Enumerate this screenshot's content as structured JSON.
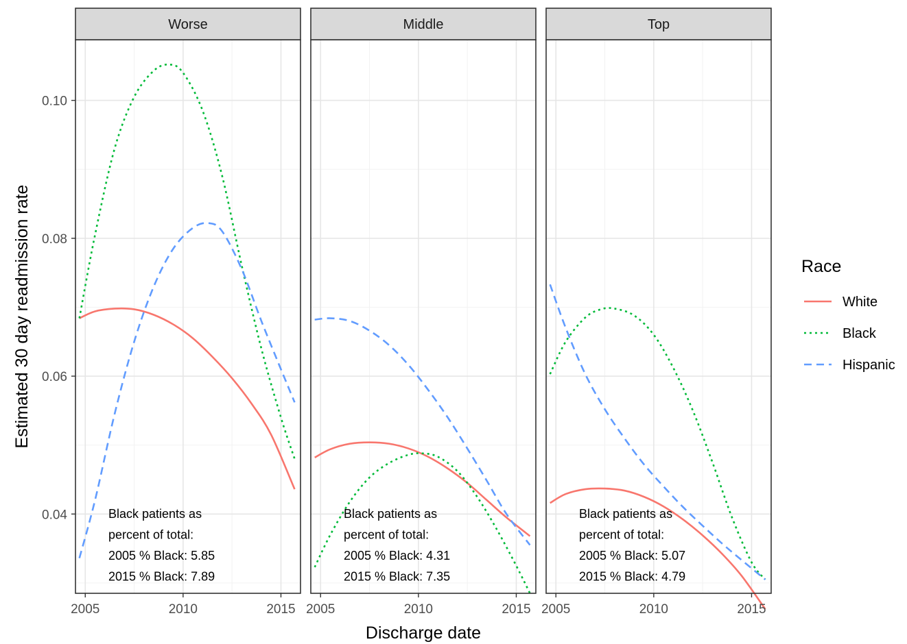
{
  "chart_data": {
    "type": "line",
    "xlabel": "Discharge date",
    "ylabel": "Estimated 30 day readmission rate",
    "xlim": [
      2004.5,
      2016.0
    ],
    "ylim": [
      0.0285,
      0.1088
    ],
    "x_ticks": [
      2005,
      2010,
      2015
    ],
    "x_tick_labels": [
      "2005",
      "2010",
      "2015"
    ],
    "y_ticks": [
      0.04,
      0.06,
      0.08,
      0.1
    ],
    "y_tick_labels": [
      "0.04",
      "0.06",
      "0.08",
      "0.10"
    ],
    "grid": true,
    "legend": {
      "title": "Race",
      "position": "right",
      "entries": [
        {
          "name": "White",
          "color": "#F8766D",
          "linetype": "solid"
        },
        {
          "name": "Black",
          "color": "#00BA38",
          "linetype": "dotted"
        },
        {
          "name": "Hispanic",
          "color": "#619CFF",
          "linetype": "dashed"
        }
      ]
    },
    "panels": [
      {
        "title": "Worse",
        "annotation": [
          "Black patients as",
          "percent of total:",
          "2005 % Black: 5.85",
          "2015 % Black: 7.89"
        ],
        "series": [
          {
            "name": "White",
            "x": [
              2004.7,
              2005.5,
              2006.5,
              2007.5,
              2008.5,
              2009.5,
              2010.5,
              2011.5,
              2012.5,
              2013.5,
              2014.5,
              2015.7
            ],
            "y": [
              0.0684,
              0.0694,
              0.0698,
              0.0697,
              0.0689,
              0.0675,
              0.0655,
              0.0628,
              0.0597,
              0.056,
              0.0515,
              0.0436
            ]
          },
          {
            "name": "Black",
            "x": [
              2004.7,
              2005.5,
              2006.5,
              2007.5,
              2008.5,
              2009.3,
              2010.0,
              2011.0,
              2012.0,
              2013.0,
              2014.0,
              2015.0,
              2015.7
            ],
            "y": [
              0.0684,
              0.0805,
              0.093,
              0.1005,
              0.1043,
              0.1052,
              0.104,
              0.0985,
              0.089,
              0.076,
              0.064,
              0.054,
              0.048
            ]
          },
          {
            "name": "Hispanic",
            "x": [
              2004.7,
              2005.5,
              2006.5,
              2007.5,
              2008.5,
              2009.5,
              2010.5,
              2011.3,
              2012.0,
              2013.0,
              2014.0,
              2015.0,
              2015.7
            ],
            "y": [
              0.0336,
              0.042,
              0.0545,
              0.065,
              0.073,
              0.0785,
              0.0815,
              0.0822,
              0.081,
              0.0755,
              0.068,
              0.061,
              0.0562
            ]
          }
        ]
      },
      {
        "title": "Middle",
        "annotation": [
          "Black patients as",
          "percent of total:",
          "2005 % Black: 4.31",
          "2015 % Black: 7.35"
        ],
        "series": [
          {
            "name": "White",
            "x": [
              2004.7,
              2005.5,
              2006.5,
              2007.5,
              2008.5,
              2009.5,
              2010.5,
              2011.5,
              2012.5,
              2013.5,
              2014.5,
              2015.7
            ],
            "y": [
              0.0482,
              0.0494,
              0.0502,
              0.0504,
              0.0502,
              0.0495,
              0.0483,
              0.0466,
              0.0445,
              0.042,
              0.0395,
              0.0368
            ]
          },
          {
            "name": "Black",
            "x": [
              2004.7,
              2005.5,
              2006.5,
              2007.5,
              2008.5,
              2009.5,
              2010.2,
              2011.0,
              2012.0,
              2013.0,
              2014.0,
              2015.0,
              2015.7
            ],
            "y": [
              0.0323,
              0.037,
              0.0418,
              0.0453,
              0.0474,
              0.0486,
              0.0488,
              0.0483,
              0.0462,
              0.0425,
              0.0378,
              0.0325,
              0.0285
            ]
          },
          {
            "name": "Hispanic",
            "x": [
              2004.7,
              2005.5,
              2006.5,
              2007.5,
              2008.5,
              2009.5,
              2010.5,
              2011.5,
              2012.5,
              2013.5,
              2014.5,
              2015.7
            ],
            "y": [
              0.0682,
              0.0684,
              0.068,
              0.0666,
              0.0645,
              0.0616,
              0.058,
              0.054,
              0.0495,
              0.0448,
              0.04,
              0.0355
            ]
          }
        ]
      },
      {
        "title": "Top",
        "annotation": [
          "Black patients as",
          "percent of total:",
          "2005 % Black: 5.07",
          "2015 % Black: 4.79"
        ],
        "series": [
          {
            "name": "White",
            "x": [
              2004.7,
              2005.5,
              2006.5,
              2007.5,
              2008.5,
              2009.5,
              2010.5,
              2011.5,
              2012.5,
              2013.5,
              2014.5,
              2015.7
            ],
            "y": [
              0.0416,
              0.0429,
              0.0436,
              0.0437,
              0.0434,
              0.0425,
              0.0411,
              0.0392,
              0.0369,
              0.0342,
              0.031,
              0.0262
            ]
          },
          {
            "name": "Black",
            "x": [
              2004.7,
              2005.5,
              2006.5,
              2007.3,
              2008.0,
              2009.0,
              2010.0,
              2011.0,
              2012.0,
              2013.0,
              2014.0,
              2015.0,
              2015.7
            ],
            "y": [
              0.0603,
              0.065,
              0.0685,
              0.0697,
              0.0698,
              0.0688,
              0.066,
              0.0612,
              0.055,
              0.0475,
              0.0395,
              0.033,
              0.0305
            ]
          },
          {
            "name": "Hispanic",
            "x": [
              2004.7,
              2005.5,
              2006.5,
              2007.5,
              2008.5,
              2009.5,
              2010.5,
              2011.5,
              2012.5,
              2013.5,
              2014.5,
              2015.7
            ],
            "y": [
              0.0733,
              0.067,
              0.0603,
              0.0552,
              0.051,
              0.0472,
              0.044,
              0.041,
              0.0383,
              0.0357,
              0.0333,
              0.0305
            ]
          }
        ]
      }
    ]
  }
}
